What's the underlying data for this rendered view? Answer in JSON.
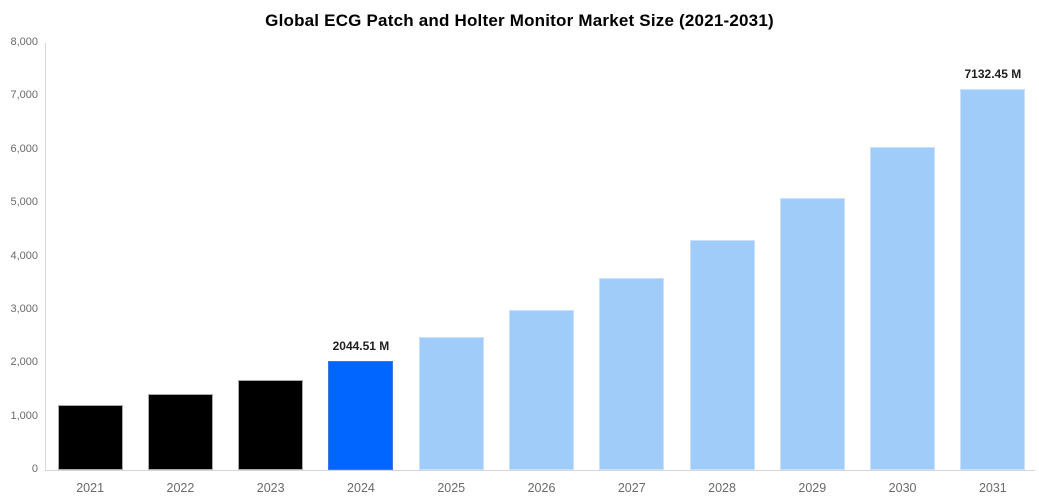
{
  "chart_data": {
    "type": "bar",
    "title": "Global ECG Patch and Holter Monitor Market Size (2021-2031)",
    "categories": [
      "2021",
      "2022",
      "2023",
      "2024",
      "2025",
      "2026",
      "2027",
      "2028",
      "2029",
      "2030",
      "2031"
    ],
    "values": [
      1220,
      1420,
      1680,
      2044.51,
      2500,
      3000,
      3600,
      4300,
      5100,
      6050,
      7132.45
    ],
    "value_unit": "M",
    "xlabel": "",
    "ylabel": "",
    "ylim": [
      0,
      8000
    ],
    "y_ticks": [
      "0",
      "1,000",
      "2,000",
      "3,000",
      "4,000",
      "5,000",
      "6,000",
      "7,000",
      "8,000"
    ],
    "grid": false,
    "legend": "none",
    "bar_colors": [
      "#000000",
      "#000000",
      "#000000",
      "#0066FF",
      "#A0CCF9",
      "#A0CCF9",
      "#A0CCF9",
      "#A0CCF9",
      "#A0CCF9",
      "#A0CCF9",
      "#A0CCF9"
    ],
    "bar_edge_colors": [
      "#ababab",
      "#ababab",
      "#ababab",
      "#3e77e0",
      "#cbe0fa",
      "#cbe0fa",
      "#cbe0fa",
      "#cbe0fa",
      "#cbe0fa",
      "#cbe0fa",
      "#cbe0fa"
    ],
    "annotations": [
      {
        "category": "2024",
        "text": "2044.51 M"
      },
      {
        "category": "2031",
        "text": "7132.45 M"
      }
    ],
    "colors": {
      "historical_bar": "#000000",
      "highlight_bar": "#0066FF",
      "forecast_bar": "#A0CCF9",
      "axis_line": "#d6d6d6",
      "tick_label": "#6b6b6b",
      "annotation_text": "#1f1f1f",
      "background": "#ffffff"
    }
  }
}
